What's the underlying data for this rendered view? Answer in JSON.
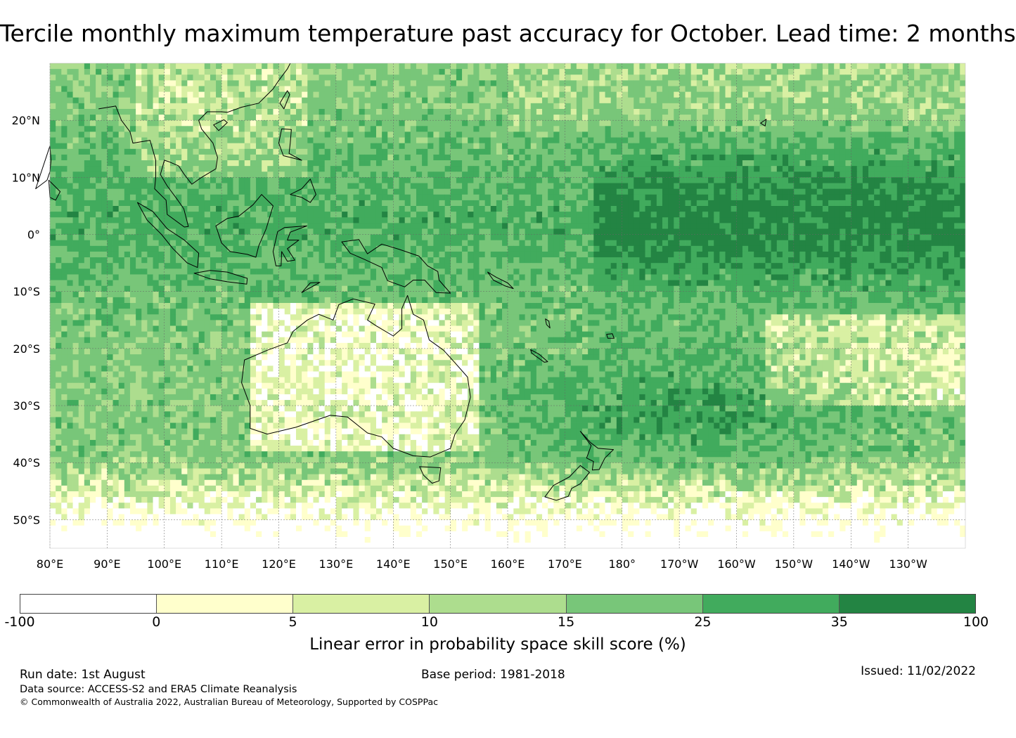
{
  "title": "Tercile monthly maximum temperature past accuracy for October. Lead time: 2 months",
  "map": {
    "lat_labels": [
      "20°N",
      "10°N",
      "0°",
      "10°S",
      "20°S",
      "30°S",
      "40°S",
      "50°S"
    ],
    "lon_labels": [
      "80°E",
      "90°E",
      "100°E",
      "110°E",
      "120°E",
      "130°E",
      "140°E",
      "150°E",
      "160°E",
      "170°E",
      "180°",
      "170°W",
      "160°W",
      "150°W",
      "140°W",
      "130°W"
    ],
    "lat_values": [
      20,
      10,
      0,
      -10,
      -20,
      -30,
      -40,
      -50
    ],
    "lon_values": [
      80,
      90,
      100,
      110,
      120,
      130,
      140,
      150,
      160,
      170,
      180,
      190,
      200,
      210,
      220,
      230
    ],
    "extent": {
      "lon": [
        80,
        240
      ],
      "lat": [
        -55,
        30
      ]
    }
  },
  "colorbar": {
    "ticks": [
      "-100",
      "0",
      "5",
      "10",
      "15",
      "25",
      "35",
      "100"
    ],
    "colors": [
      "#ffffff",
      "#ffffcc",
      "#d9f0a3",
      "#addd8e",
      "#78c679",
      "#41ab5d",
      "#238443"
    ],
    "label": "Linear error in probability space skill score (%)"
  },
  "footer": {
    "run_date": "Run date: 1st August",
    "base_period": "Base period: 1981-2018",
    "issued": "Issued: 11/02/2022",
    "data_source": "Data source: ACCESS-S2 and ERA5 Climate Reanalysis",
    "copyright": "© Commonwealth of Australia 2022, Australian Bureau of Meteorology, Supported by COSPPac"
  }
}
